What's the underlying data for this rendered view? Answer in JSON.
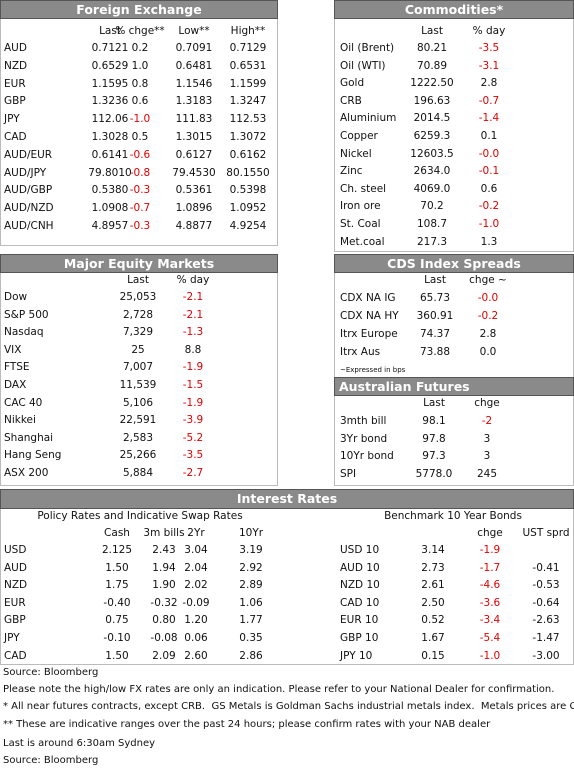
{
  "foreign_exchange": {
    "title": "Foreign Exchange",
    "columns": [
      "Last",
      "% chge**",
      "Low**",
      "High**"
    ],
    "rows": [
      [
        "AUD",
        "0.7121",
        "0.2",
        "0.7091",
        "0.7129"
      ],
      [
        "NZD",
        "0.6529",
        "1.0",
        "0.6481",
        "0.6531"
      ],
      [
        "EUR",
        "1.1595",
        "0.8",
        "1.1546",
        "1.1599"
      ],
      [
        "GBP",
        "1.3236",
        "0.6",
        "1.3183",
        "1.3247"
      ],
      [
        "JPY",
        "112.06",
        "-1.0",
        "111.83",
        "112.53"
      ],
      [
        "CAD",
        "1.3028",
        "0.5",
        "1.3015",
        "1.3072"
      ],
      [
        "AUD/EUR",
        "0.6141",
        "-0.6",
        "0.6127",
        "0.6162"
      ],
      [
        "AUD/JPY",
        "79.8010",
        "-0.8",
        "79.4530",
        "80.1550"
      ],
      [
        "AUD/GBP",
        "0.5380",
        "-0.3",
        "0.5361",
        "0.5398"
      ],
      [
        "AUD/NZD",
        "1.0908",
        "-0.7",
        "1.0896",
        "1.0952"
      ],
      [
        "AUD/CNH",
        "4.8957",
        "-0.3",
        "4.8877",
        "4.9254"
      ]
    ]
  },
  "commodities": {
    "title": "Commodities*",
    "columns": [
      "Last",
      "% day"
    ],
    "rows": [
      [
        "Oil (Brent)",
        "80.21",
        "-3.5"
      ],
      [
        "Oil (WTI)",
        "70.89",
        "-3.1"
      ],
      [
        "Gold",
        "1222.50",
        "2.8"
      ],
      [
        "CRB",
        "196.63",
        "-0.7"
      ],
      [
        "Aluminium",
        "2014.5",
        "-1.4"
      ],
      [
        "Copper",
        "6259.3",
        "0.1"
      ],
      [
        "Nickel",
        "12603.5",
        "-0.0"
      ],
      [
        "Zinc",
        "2634.0",
        "-0.1"
      ],
      [
        "Ch. steel",
        "4069.0",
        "0.6"
      ],
      [
        "Iron ore",
        "70.2",
        "-0.2"
      ],
      [
        "St. Coal",
        "108.7",
        "-1.0"
      ],
      [
        "Met.coal",
        "217.3",
        "1.3"
      ]
    ]
  },
  "equity_markets": {
    "title": "Major Equity Markets",
    "columns": [
      "Last",
      "% day"
    ],
    "rows": [
      [
        "Dow",
        "25,053",
        "-2.1"
      ],
      [
        "S&P 500",
        "2,728",
        "-2.1"
      ],
      [
        "Nasdaq",
        "7,329",
        "-1.3"
      ],
      [
        "VIX",
        "25",
        "8.8"
      ],
      [
        "FTSE",
        "7,007",
        "-1.9"
      ],
      [
        "DAX",
        "11,539",
        "-1.5"
      ],
      [
        "CAC 40",
        "5,106",
        "-1.9"
      ],
      [
        "Nikkei",
        "22,591",
        "-3.9"
      ],
      [
        "Shanghai",
        "2,583",
        "-5.2"
      ],
      [
        "Hang Seng",
        "25,266",
        "-3.5"
      ],
      [
        "ASX 200",
        "5,884",
        "-2.7"
      ]
    ]
  },
  "cds_spreads": {
    "title": "CDS Index Spreads",
    "columns": [
      "Last",
      "chge ~"
    ],
    "rows": [
      [
        "CDX NA IG",
        "65.73",
        "-0.0"
      ],
      [
        "CDX NA HY",
        "360.91",
        "-0.2"
      ],
      [
        "Itrx Europe",
        "74.37",
        "2.8"
      ],
      [
        "Itrx Aus",
        "73.88",
        "0.0"
      ]
    ],
    "note": "~Expressed in bps"
  },
  "australian_futures": {
    "title": "Australian Futures",
    "columns": [
      "Last",
      "chge"
    ],
    "rows": [
      [
        "3mth bill",
        "98.1",
        "-2"
      ],
      [
        "3Yr bond",
        "97.8",
        "3"
      ],
      [
        "10Yr bond",
        "97.3",
        "3"
      ],
      [
        "SPI",
        "5778.0",
        "245"
      ]
    ]
  },
  "interest_rates": {
    "title": "Interest Rates",
    "policy_rates": {
      "title": "Policy Rates and Indicative Swap Rates",
      "columns": [
        "Cash",
        "3m bills",
        "2Yr",
        "10Yr"
      ],
      "rows": [
        [
          "USD",
          "2.125",
          "2.43",
          "3.04",
          "3.19"
        ],
        [
          "AUD",
          "1.50",
          "1.94",
          "2.04",
          "2.92"
        ],
        [
          "NZD",
          "1.75",
          "1.90",
          "2.02",
          "2.89"
        ],
        [
          "EUR",
          "-0.40",
          "-0.32",
          "-0.09",
          "1.06"
        ],
        [
          "GBP",
          "0.75",
          "0.80",
          "1.20",
          "1.77"
        ],
        [
          "JPY",
          "-0.10",
          "-0.08",
          "0.06",
          "0.35"
        ],
        [
          "CAD",
          "1.50",
          "2.09",
          "2.60",
          "2.86"
        ]
      ]
    },
    "bonds": {
      "title": "Benchmark 10 Year Bonds",
      "columns": [
        null,
        "chge",
        "UST sprd"
      ],
      "rows": [
        [
          "USD 10",
          "3.14",
          "-1.9",
          null
        ],
        [
          "AUD 10",
          "2.73",
          "-1.7",
          "-0.41"
        ],
        [
          "NZD 10",
          "2.61",
          "-4.6",
          "-0.53"
        ],
        [
          "CAD 10",
          "2.50",
          "-3.6",
          "-0.64"
        ],
        [
          "EUR 10",
          "0.52",
          "-3.4",
          "-2.63"
        ],
        [
          "GBP 10",
          "1.67",
          "-5.4",
          "-1.47"
        ],
        [
          "JPY 10",
          "0.15",
          "-1.0",
          "-3.00"
        ]
      ]
    }
  },
  "footnotes": [
    "Source: Bloomberg",
    "Please note the high/low FX rates are only an indication. Please refer to your National Dealer for confirmation.",
    "* All near futures contracts, except CRB.  GS Metals is Goldman Sachs industrial metals index.  Metals prices are CME.",
    "** These are indicative ranges over the past 24 hours; please confirm rates with your NAB dealer",
    "Last is around 6:30am Sydney",
    "Source: Bloomberg"
  ]
}
